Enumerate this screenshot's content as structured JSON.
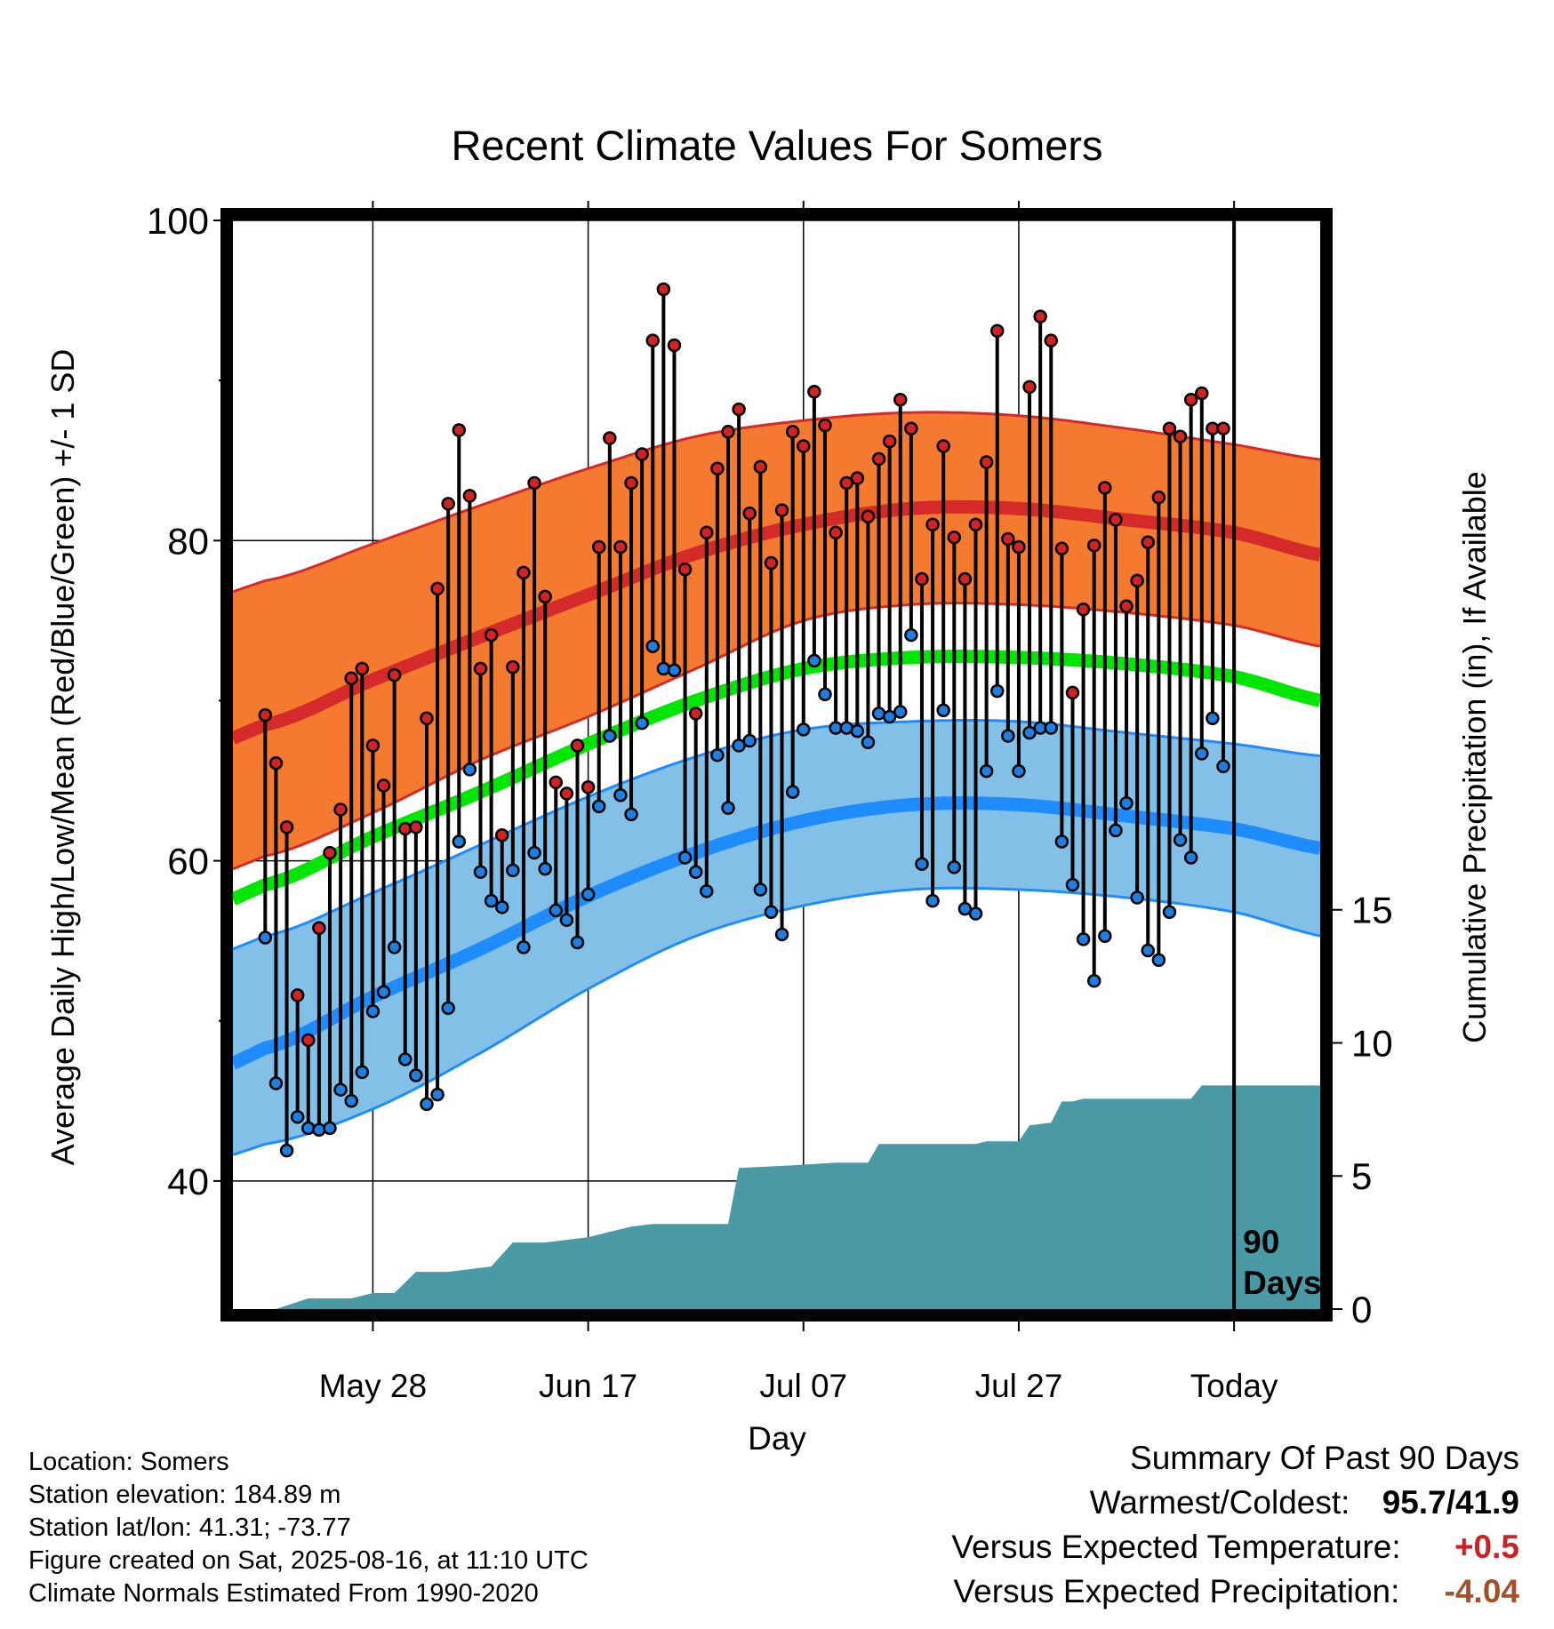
{
  "chart_data": {
    "type": "line",
    "title": "Recent Climate Values For Somers",
    "xlabel": "Day",
    "ylabel": "Average Daily High/Low/Mean (Red/Blue/Green) +/- 1 SD",
    "y2label": "Cumulative Precipitation (in), If Available",
    "x_range_days": [
      -93,
      8
    ],
    "ylim": [
      32,
      100
    ],
    "y_ticks": [
      40,
      60,
      80,
      100
    ],
    "y2lim": [
      0,
      40.9
    ],
    "y2_ticks": [
      0,
      5,
      10,
      15
    ],
    "x_ticks": [
      {
        "day": -80,
        "label": "May 28"
      },
      {
        "day": -60,
        "label": "Jun 17"
      },
      {
        "day": -40,
        "label": "Jul 07"
      },
      {
        "day": -20,
        "label": "Jul 27"
      },
      {
        "day": 0,
        "label": "Today"
      }
    ],
    "today_marker_label": [
      "90",
      "Days"
    ],
    "normals": {
      "days": [
        -90,
        -80,
        -70,
        -60,
        -50,
        -40,
        -30,
        -20,
        -10,
        0,
        9
      ],
      "high_mean": [
        68.5,
        71.3,
        74.0,
        76.6,
        79.2,
        81.0,
        82.0,
        82.0,
        81.3,
        80.5,
        79.0
      ],
      "high_upper": [
        77.5,
        79.8,
        82.2,
        84.5,
        86.5,
        87.5,
        88.0,
        87.8,
        87.0,
        86.0,
        85.0
      ],
      "high_lower": [
        60.3,
        63.0,
        66.3,
        69.0,
        72.0,
        75.0,
        76.0,
        76.0,
        75.5,
        74.7,
        73.3
      ],
      "mean": [
        58.5,
        61.5,
        64.3,
        67.3,
        70.0,
        72.0,
        72.7,
        72.7,
        72.3,
        71.5,
        69.9
      ],
      "low_mean": [
        48.3,
        51.5,
        54.5,
        57.8,
        60.5,
        62.5,
        63.5,
        63.5,
        62.8,
        62.0,
        60.7
      ],
      "low_upper": [
        55.3,
        58.0,
        61.0,
        64.0,
        66.5,
        68.2,
        68.7,
        68.7,
        68.0,
        67.3,
        66.5
      ],
      "low_lower": [
        42.3,
        44.5,
        48.0,
        52.0,
        55.3,
        57.2,
        58.2,
        58.2,
        57.7,
        56.8,
        55.2
      ]
    },
    "daily": {
      "start_day": -90,
      "highs": [
        69.1,
        66.1,
        62.1,
        51.6,
        48.8,
        55.8,
        60.5,
        63.2,
        71.4,
        72.0,
        67.2,
        64.7,
        71.6,
        62.0,
        62.1,
        68.9,
        77.0,
        82.3,
        86.9,
        82.8,
        72.0,
        74.1,
        61.6,
        72.1,
        78.0,
        83.6,
        76.5,
        64.9,
        64.2,
        67.2,
        64.6,
        79.6,
        86.4,
        79.6,
        83.6,
        85.4,
        92.5,
        95.7,
        92.2,
        78.2,
        69.2,
        80.5,
        84.5,
        86.8,
        88.2,
        81.7,
        84.6,
        78.6,
        81.9,
        86.8,
        85.9,
        89.3,
        87.2,
        80.5,
        83.6,
        83.9,
        81.5,
        85.1,
        86.2,
        88.8,
        87.0,
        77.6,
        81.0,
        85.9,
        80.2,
        77.6,
        81.0,
        84.9,
        93.1,
        80.1,
        79.6,
        89.6,
        94.0,
        92.5,
        79.5,
        70.5,
        75.7,
        79.7,
        83.3,
        81.3,
        75.9,
        77.5,
        79.9,
        82.7,
        87.0,
        86.5,
        88.8,
        89.2,
        87.0,
        87.0
      ],
      "lows": [
        55.2,
        46.1,
        41.9,
        44.0,
        43.3,
        43.2,
        43.3,
        45.7,
        45.0,
        46.8,
        50.6,
        51.8,
        54.6,
        47.6,
        46.6,
        44.8,
        45.4,
        50.8,
        61.2,
        65.7,
        59.3,
        57.5,
        57.1,
        59.4,
        54.6,
        60.5,
        59.5,
        56.9,
        56.3,
        54.9,
        57.9,
        63.4,
        67.8,
        64.1,
        62.9,
        68.6,
        73.4,
        72.0,
        71.9,
        60.2,
        59.3,
        58.1,
        66.6,
        63.3,
        67.2,
        67.5,
        58.2,
        56.8,
        55.4,
        64.3,
        68.2,
        72.5,
        70.4,
        68.3,
        68.3,
        68.1,
        67.4,
        69.2,
        69.0,
        69.3,
        74.1,
        59.8,
        57.5,
        69.4,
        59.6,
        57.0,
        56.7,
        65.6,
        70.6,
        67.8,
        65.6,
        68.0,
        68.3,
        68.3,
        61.2,
        58.5,
        55.1,
        52.5,
        55.3,
        61.9,
        63.6,
        57.7,
        54.4,
        53.8,
        56.8,
        61.3,
        60.2,
        66.7,
        68.9,
        65.9
      ]
    },
    "precip_cumulative": {
      "steps": [
        [
          -93,
          0.0
        ],
        [
          -89,
          0.0
        ],
        [
          -86,
          0.4
        ],
        [
          -82,
          0.4
        ],
        [
          -80,
          0.6
        ],
        [
          -78,
          0.6
        ],
        [
          -76,
          1.4
        ],
        [
          -73,
          1.4
        ],
        [
          -71,
          1.5
        ],
        [
          -69,
          1.6
        ],
        [
          -67,
          2.5
        ],
        [
          -64,
          2.5
        ],
        [
          -62,
          2.6
        ],
        [
          -60,
          2.7
        ],
        [
          -58,
          2.9
        ],
        [
          -56,
          3.1
        ],
        [
          -54,
          3.2
        ],
        [
          -47,
          3.2
        ],
        [
          -46,
          5.3
        ],
        [
          -41,
          5.4
        ],
        [
          -37,
          5.5
        ],
        [
          -34,
          5.5
        ],
        [
          -33,
          6.2
        ],
        [
          -24,
          6.2
        ],
        [
          -23,
          6.3
        ],
        [
          -20,
          6.3
        ],
        [
          -19,
          6.9
        ],
        [
          -17,
          7.0
        ],
        [
          -16,
          7.8
        ],
        [
          -15,
          7.8
        ],
        [
          -14,
          7.9
        ],
        [
          -4,
          7.9
        ],
        [
          -3,
          8.4
        ],
        [
          9,
          8.4
        ]
      ]
    }
  },
  "info": {
    "location": "Location: Somers",
    "elevation": "Station elevation: 184.89 m",
    "latlon": "Station lat/lon: 41.31; -73.77",
    "created": "Figure created on Sat, 2025-08-16, at 11:10 UTC",
    "normals": "Climate Normals Estimated From 1990-2020"
  },
  "summary": {
    "title": "Summary Of Past 90 Days",
    "warm_cold_label": "Warmest/Coldest:",
    "warm_cold_value": "95.7/41.9",
    "temp_label": "Versus Expected Temperature:",
    "temp_value": "+0.5",
    "precip_label": "Versus Expected Precipitation:",
    "precip_value": "-4.04"
  },
  "colors": {
    "high_band": "#f47a30",
    "high_line": "#d42a2a",
    "mean_line": "#00e600",
    "low_band": "#82c0e8",
    "low_line": "#1e8cff",
    "high_point": "#d02424",
    "low_point": "#1f7fe0",
    "precip": "#4a9aa6",
    "temp_value": "#cc2222",
    "precip_value": "#a0522d"
  }
}
